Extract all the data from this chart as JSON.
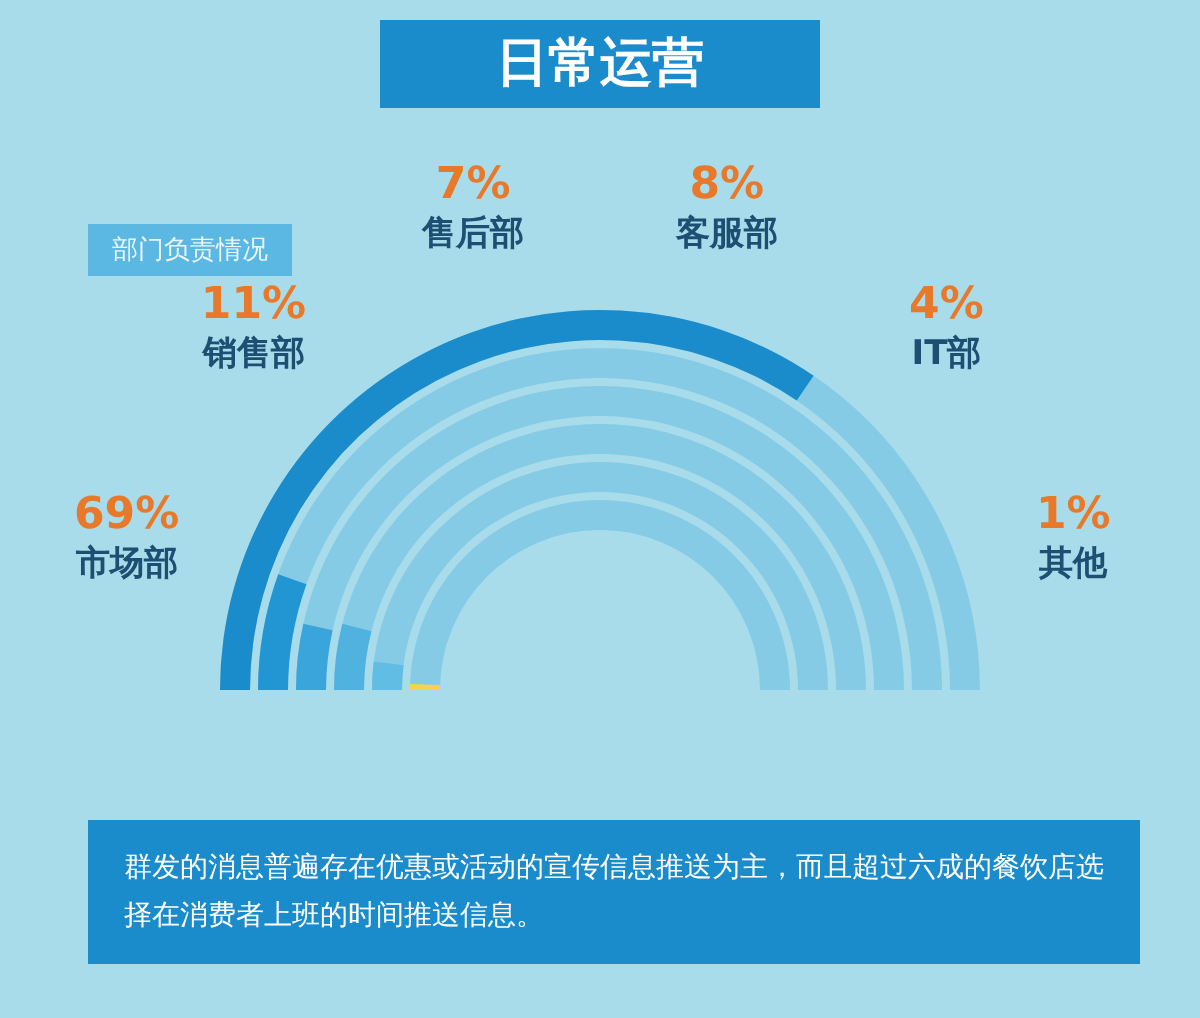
{
  "chart_data": {
    "type": "other",
    "title": "日常运营",
    "subtitle": "部门负责情况",
    "categories": [
      "市场部",
      "销售部",
      "售后部",
      "客服部",
      "IT部",
      "其他"
    ],
    "values": [
      69,
      11,
      7,
      8,
      4,
      1
    ],
    "colors": [
      "#1b8ccb",
      "#2196d2",
      "#3aa5da",
      "#4fb2df",
      "#62bde4",
      "#f4d548"
    ],
    "value_labels": [
      "69%",
      "11%",
      "7%",
      "8%",
      "4%",
      "1%"
    ],
    "annotations": [
      "群发的消息普遍存在优惠或活动的宣传信息推送为主，而且超过六成的餐饮店选择在消费者上班的时间推送信息。"
    ]
  }
}
